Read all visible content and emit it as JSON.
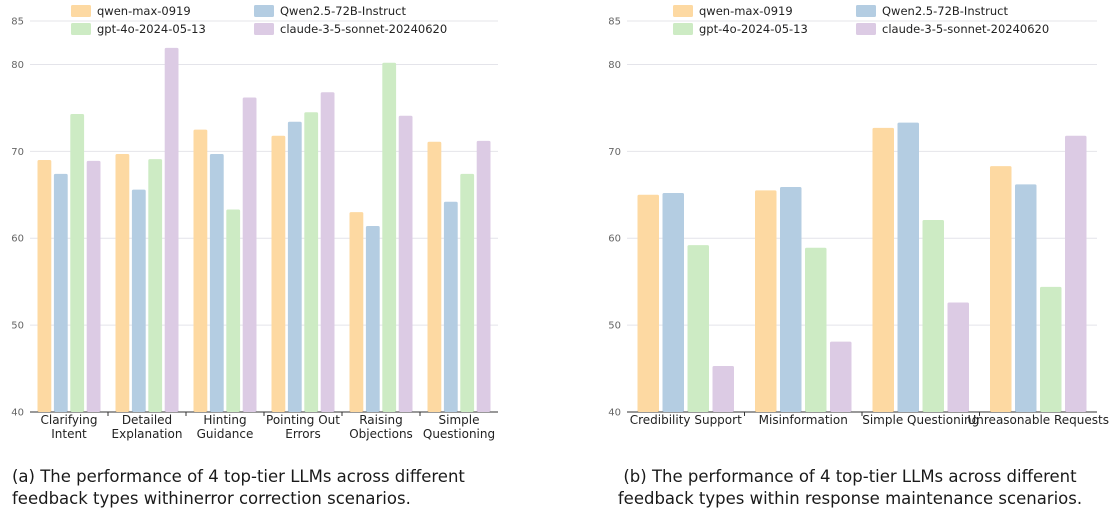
{
  "colors": {
    "qwen-max-0919": "#fdd9a2",
    "Qwen2.5-72B-Instruct": "#b4cde2",
    "gpt-4o-2024-05-13": "#cdebc4",
    "claude-3-5-sonnet-20240620": "#dccbe4"
  },
  "chart_data": [
    {
      "type": "bar",
      "title": "",
      "xlabel": "",
      "ylabel": "",
      "ylim": [
        40,
        85
      ],
      "yticks": [
        40,
        50,
        60,
        70,
        80,
        85
      ],
      "grid": true,
      "legend_position": "top",
      "categories": [
        [
          "Clarifying",
          "Intent"
        ],
        [
          "Detailed",
          "Explanation"
        ],
        [
          "Hinting",
          "Guidance"
        ],
        [
          "Pointing Out",
          "Errors"
        ],
        [
          "Raising",
          "Objections"
        ],
        [
          "Simple",
          "Questioning"
        ]
      ],
      "series": [
        {
          "name": "qwen-max-0919",
          "values": [
            69.0,
            69.7,
            72.5,
            71.8,
            63.0,
            71.1
          ]
        },
        {
          "name": "Qwen2.5-72B-Instruct",
          "values": [
            67.4,
            65.6,
            69.7,
            73.4,
            61.4,
            64.2
          ]
        },
        {
          "name": "gpt-4o-2024-05-13",
          "values": [
            74.3,
            69.1,
            63.3,
            74.5,
            80.2,
            67.4
          ]
        },
        {
          "name": "claude-3-5-sonnet-20240620",
          "values": [
            68.9,
            81.9,
            76.2,
            76.8,
            74.1,
            71.2
          ]
        }
      ]
    },
    {
      "type": "bar",
      "title": "",
      "xlabel": "",
      "ylabel": "",
      "ylim": [
        40,
        85
      ],
      "yticks": [
        40,
        50,
        60,
        70,
        80,
        85
      ],
      "grid": true,
      "legend_position": "top",
      "categories": [
        [
          "Credibility Support"
        ],
        [
          "Misinformation"
        ],
        [
          "Simple Questioning"
        ],
        [
          "Unreasonable Requests"
        ]
      ],
      "series": [
        {
          "name": "qwen-max-0919",
          "values": [
            65.0,
            65.5,
            72.7,
            68.3
          ]
        },
        {
          "name": "Qwen2.5-72B-Instruct",
          "values": [
            65.2,
            65.9,
            73.3,
            66.2
          ]
        },
        {
          "name": "gpt-4o-2024-05-13",
          "values": [
            59.2,
            58.9,
            62.1,
            54.4
          ]
        },
        {
          "name": "claude-3-5-sonnet-20240620",
          "values": [
            45.3,
            48.1,
            52.6,
            71.8
          ]
        }
      ]
    }
  ],
  "captions": {
    "a": [
      "(a) The performance of 4 top-tier LLMs across different",
      "feedback types withinerror correction scenarios."
    ],
    "b": [
      "(b) The performance of 4 top-tier LLMs across different",
      "feedback types within response maintenance scenarios."
    ]
  }
}
